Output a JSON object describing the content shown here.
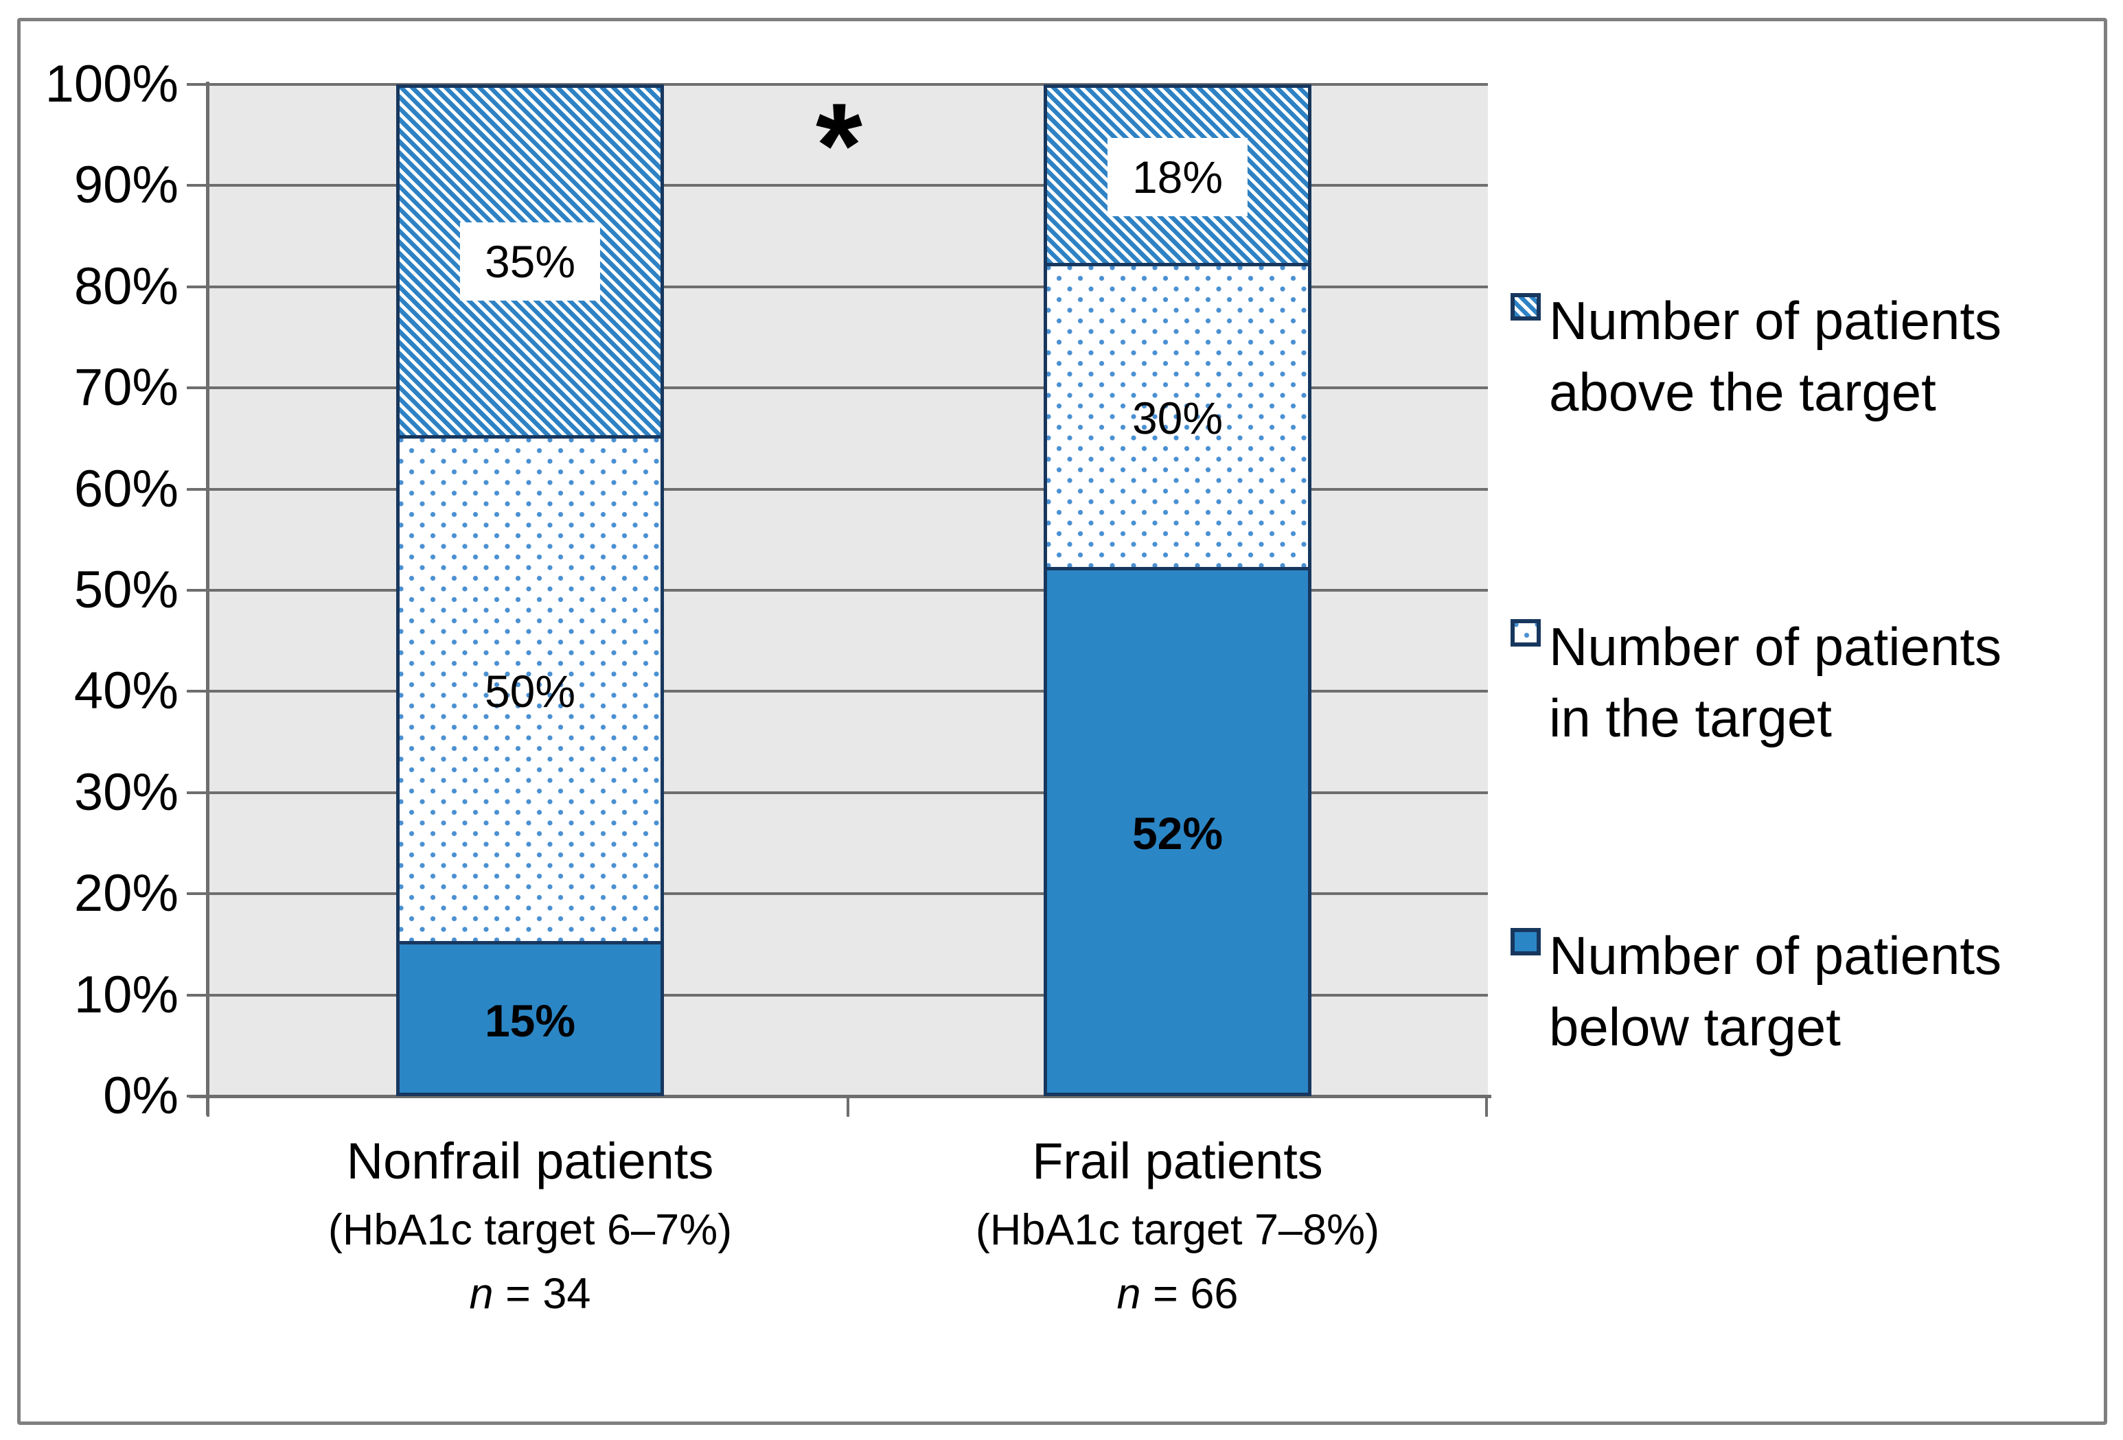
{
  "chart_data": {
    "type": "bar",
    "stacked": true,
    "title": "",
    "xlabel": "",
    "ylabel": "",
    "ylim": [
      0,
      100
    ],
    "ytick_step": 10,
    "yticks": [
      "100%",
      "90%",
      "80%",
      "70%",
      "60%",
      "50%",
      "40%",
      "30%",
      "20%",
      "10%",
      "0%"
    ],
    "grid": true,
    "plot_bg": "#e9e8e8",
    "categories": [
      {
        "label": "Nonfrail patients",
        "target_note": "(HbA1c target 6–7%)",
        "n_italic": "n",
        "n_rest": " = 34",
        "n": 34
      },
      {
        "label": "Frail  patients",
        "target_note": "(HbA1c target 7–8%)",
        "n_italic": "n",
        "n_rest": " = 66",
        "n": 66
      }
    ],
    "series": [
      {
        "name": "Number of patients below target",
        "pattern": "solid",
        "values": [
          15,
          52
        ],
        "labels": [
          "15%",
          "52%"
        ]
      },
      {
        "name": "Number of patients in the target",
        "pattern": "dots",
        "values": [
          50,
          30
        ],
        "labels": [
          "50%",
          "30%"
        ]
      },
      {
        "name": "Number of patients above the target",
        "pattern": "hatch",
        "values": [
          35,
          18
        ],
        "labels": [
          "35%",
          "18%"
        ]
      }
    ],
    "significance_marker": "*",
    "legend": {
      "position": "right",
      "entries": [
        {
          "line1": "Number of patients",
          "line2": "above the target",
          "pattern": "hatch"
        },
        {
          "line1": "Number of patients",
          "line2": "in the target",
          "pattern": "dots"
        },
        {
          "line1": "Number of patients",
          "line2": "below target",
          "pattern": "solid"
        }
      ]
    },
    "colors": {
      "solid_fill": "#2b86c6",
      "hatch_blue": "#2e82c4",
      "dot_blue": "#4a90d2",
      "bar_border": "#17375e",
      "gridline": "#6e6e6e",
      "figure_border": "#7f7f7f",
      "text": "#000000"
    }
  }
}
